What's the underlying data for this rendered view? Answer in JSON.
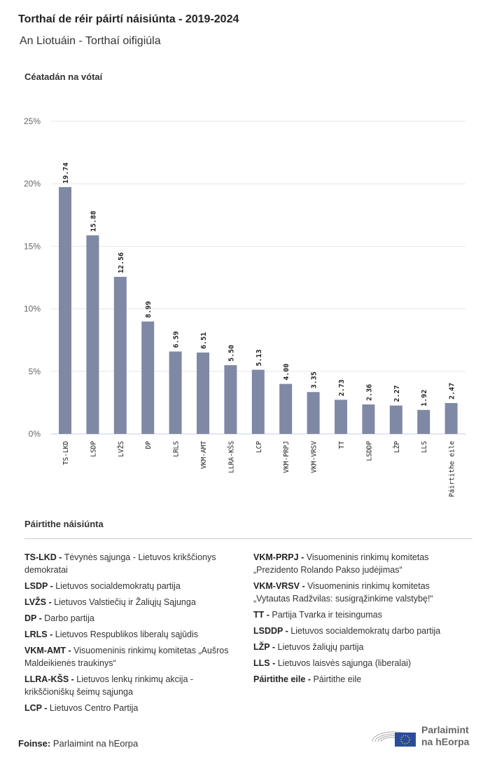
{
  "header": {
    "title": "Torthaí de réir páirtí náisiúnta - 2019-2024",
    "subtitle": "An Liotuáin - Torthaí oifigiúla"
  },
  "chart_data": {
    "type": "bar",
    "ylabel": "Céatadán na vótaí",
    "categories": [
      "TS-LKD",
      "LSDP",
      "LVŽS",
      "DP",
      "LRLS",
      "VKM-AMT",
      "LLRA-KŠS",
      "LCP",
      "VKM-PRPJ",
      "VKM-VRSV",
      "TT",
      "LSDDP",
      "LŽP",
      "LLS",
      "Páirtithe eile"
    ],
    "values": [
      19.74,
      15.88,
      12.56,
      8.99,
      6.59,
      6.51,
      5.5,
      5.13,
      4.0,
      3.35,
      2.73,
      2.36,
      2.27,
      1.92,
      2.47
    ],
    "data_labels": [
      "19.74",
      "15.88",
      "12.56",
      "8.99",
      "6.59",
      "6.51",
      "5.50",
      "5.13",
      "4.00",
      "3.35",
      "2.73",
      "2.36",
      "2.27",
      "1.92",
      "2.47"
    ],
    "ylim": [
      0,
      25
    ],
    "yticks": [
      0,
      5,
      10,
      15,
      20,
      25
    ],
    "ytick_labels": [
      "0%",
      "5%",
      "10%",
      "15%",
      "20%",
      "25%"
    ],
    "grid": true,
    "bar_color": "#7f89a6"
  },
  "legend": {
    "title": "Páirtithe náisiúnta",
    "left": [
      {
        "abbr": "TS-LKD -",
        "name": "Tėvynės sąjunga - Lietuvos krikščionys demokratai"
      },
      {
        "abbr": "LSDP -",
        "name": "Lietuvos socialdemokratų partija"
      },
      {
        "abbr": "LVŽS -",
        "name": "Lietuvos Valstiečių ir Žaliųjų Sąjunga"
      },
      {
        "abbr": "DP -",
        "name": "Darbo partija"
      },
      {
        "abbr": "LRLS -",
        "name": "Lietuvos Respublikos liberalų sąjūdis"
      },
      {
        "abbr": "VKM-AMT -",
        "name": "Visuomeninis rinkimų komitetas „Aušros Maldeikienės traukinys“"
      },
      {
        "abbr": "LLRA-KŠS -",
        "name": "Lietuvos lenkų rinkimų akcija - krikščioniškų šeimų sąjunga"
      },
      {
        "abbr": "LCP -",
        "name": "Lietuvos Centro Partija"
      }
    ],
    "right": [
      {
        "abbr": "VKM-PRPJ -",
        "name": "Visuomeninis rinkimų komitetas „Prezidento Rolando Pakso judėjimas“"
      },
      {
        "abbr": "VKM-VRSV -",
        "name": "Visuomeninis rinkimų komitetas „Vytautas Radžvilas: susigrąžinkime valstybę!“"
      },
      {
        "abbr": "TT -",
        "name": "Partija Tvarka ir teisingumas"
      },
      {
        "abbr": "LSDDP -",
        "name": "Lietuvos socialdemokratų darbo partija"
      },
      {
        "abbr": "LŽP -",
        "name": "Lietuvos žaliųjų partija"
      },
      {
        "abbr": "LLS -",
        "name": "Lietuvos laisvės sąjunga (liberalai)"
      },
      {
        "abbr": "Páirtithe eile -",
        "name": "Páirtithe eile"
      }
    ]
  },
  "footer": {
    "source_label": "Foinse:",
    "source": "Parlaimint na hEorpa",
    "logo_line1": "Parlaimint",
    "logo_line2": "na hEorpa"
  }
}
